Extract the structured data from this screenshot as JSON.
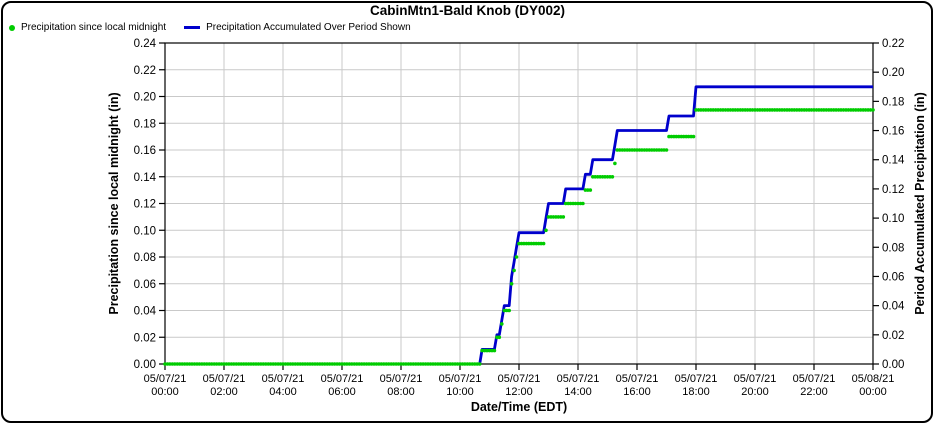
{
  "window": {
    "title": "CabinMtn1-Bald Knob (DY002)"
  },
  "legend": [
    {
      "label": "Precipitation since local midnight",
      "marker": "dot",
      "color": "#00CC00"
    },
    {
      "label": "Precipitation Accumulated Over Period Shown",
      "marker": "line",
      "color": "#0000CC"
    }
  ],
  "chart_data": {
    "type": "line",
    "title": "CabinMtn1-Bald Knob (DY002)",
    "xlabel": "Date/Time (EDT)",
    "ylabel_left": "Precipitation since local midnight (in)",
    "ylabel_right": "Period Accumulated Precipitation (in)",
    "grid": true,
    "colors": {
      "dots": "#00CC00",
      "line": "#0000CC",
      "grid": "#C9C9C9",
      "axis": "#000000"
    },
    "left_axis": {
      "min": 0,
      "max": 0.24,
      "step": 0.02
    },
    "right_axis": {
      "min": 0,
      "max": 0.22,
      "step": 0.02
    },
    "x_ticks": [
      {
        "date": "05/07/21",
        "time": "00:00"
      },
      {
        "date": "05/07/21",
        "time": "02:00"
      },
      {
        "date": "05/07/21",
        "time": "04:00"
      },
      {
        "date": "05/07/21",
        "time": "06:00"
      },
      {
        "date": "05/07/21",
        "time": "08:00"
      },
      {
        "date": "05/07/21",
        "time": "10:00"
      },
      {
        "date": "05/07/21",
        "time": "12:00"
      },
      {
        "date": "05/07/21",
        "time": "14:00"
      },
      {
        "date": "05/07/21",
        "time": "16:00"
      },
      {
        "date": "05/07/21",
        "time": "18:00"
      },
      {
        "date": "05/07/21",
        "time": "20:00"
      },
      {
        "date": "05/07/21",
        "time": "22:00"
      },
      {
        "date": "05/08/21",
        "time": "00:00"
      }
    ],
    "sample_interval_minutes": 5,
    "series": [
      {
        "name": "Precipitation since local midnight",
        "axis": "left",
        "style": "dots",
        "color": "#00CC00"
      },
      {
        "name": "Precipitation Accumulated Over Period Shown",
        "axis": "right",
        "style": "line",
        "color": "#0000CC"
      }
    ],
    "cumulative_segments": [
      {
        "from": "00:00",
        "to": "10:40",
        "value": 0.0
      },
      {
        "from": "10:45",
        "to": "11:10",
        "value": 0.01
      },
      {
        "from": "11:15",
        "to": "11:20",
        "value": 0.02
      },
      {
        "from": "11:25",
        "to": "11:25",
        "value": 0.03
      },
      {
        "from": "11:30",
        "to": "11:40",
        "value": 0.04
      },
      {
        "from": "11:45",
        "to": "11:45",
        "value": 0.06
      },
      {
        "from": "11:50",
        "to": "11:50",
        "value": 0.07
      },
      {
        "from": "11:55",
        "to": "11:55",
        "value": 0.08
      },
      {
        "from": "12:00",
        "to": "12:50",
        "value": 0.09
      },
      {
        "from": "12:55",
        "to": "12:55",
        "value": 0.1
      },
      {
        "from": "13:00",
        "to": "13:30",
        "value": 0.11
      },
      {
        "from": "13:35",
        "to": "14:10",
        "value": 0.12
      },
      {
        "from": "14:15",
        "to": "14:25",
        "value": 0.13
      },
      {
        "from": "14:30",
        "to": "15:10",
        "value": 0.14
      },
      {
        "from": "15:15",
        "to": "15:15",
        "value": 0.15
      },
      {
        "from": "15:20",
        "to": "17:00",
        "value": 0.16
      },
      {
        "from": "17:05",
        "to": "17:55",
        "value": 0.17
      },
      {
        "from": "18:00",
        "to": "24:00",
        "value": 0.19
      }
    ],
    "total_inches": 0.19
  }
}
